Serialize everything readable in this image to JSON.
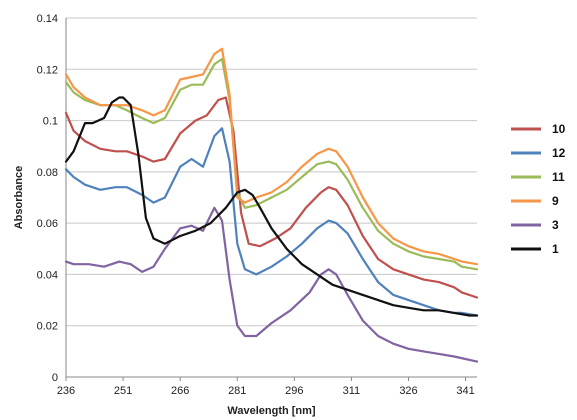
{
  "chart_data": {
    "type": "line",
    "xlabel": "Wavelength [nm]",
    "ylabel": "Absorbance",
    "xlim": [
      236,
      344
    ],
    "ylim": [
      0,
      0.14
    ],
    "x_ticks": [
      "236",
      "251",
      "266",
      "281",
      "296",
      "311",
      "326",
      "341"
    ],
    "y_ticks": [
      "0",
      "0.02",
      "0.04",
      "0.06",
      "0.08",
      "0.1",
      "0.12",
      "0.14"
    ],
    "grid": true,
    "legend_position": "right",
    "series": [
      {
        "name": "10",
        "color": "#c0504d",
        "x": [
          236,
          238,
          241,
          245,
          249,
          252,
          256,
          259,
          262,
          266,
          270,
          273,
          276,
          278,
          280,
          282,
          284,
          287,
          291,
          295,
          299,
          303,
          305,
          307,
          310,
          314,
          318,
          322,
          326,
          330,
          334,
          338,
          340,
          344
        ],
        "y": [
          0.103,
          0.096,
          0.092,
          0.089,
          0.088,
          0.088,
          0.086,
          0.084,
          0.085,
          0.095,
          0.1,
          0.102,
          0.108,
          0.109,
          0.096,
          0.064,
          0.052,
          0.051,
          0.054,
          0.058,
          0.066,
          0.072,
          0.074,
          0.073,
          0.067,
          0.055,
          0.046,
          0.042,
          0.04,
          0.038,
          0.037,
          0.035,
          0.033,
          0.031
        ]
      },
      {
        "name": "12",
        "color": "#4f81bd",
        "x": [
          236,
          238,
          241,
          245,
          249,
          252,
          256,
          259,
          262,
          266,
          269,
          272,
          275,
          277,
          279,
          281,
          283,
          286,
          290,
          294,
          298,
          302,
          305,
          307,
          310,
          314,
          318,
          322,
          326,
          330,
          334,
          338,
          340,
          344
        ],
        "y": [
          0.081,
          0.078,
          0.075,
          0.073,
          0.074,
          0.074,
          0.071,
          0.068,
          0.07,
          0.082,
          0.085,
          0.082,
          0.094,
          0.097,
          0.084,
          0.052,
          0.042,
          0.04,
          0.043,
          0.047,
          0.052,
          0.058,
          0.061,
          0.06,
          0.056,
          0.046,
          0.037,
          0.032,
          0.03,
          0.028,
          0.026,
          0.025,
          0.025,
          0.024
        ]
      },
      {
        "name": "11",
        "color": "#9bbb59",
        "x": [
          236,
          238,
          241,
          245,
          249,
          252,
          256,
          259,
          262,
          266,
          269,
          272,
          275,
          277,
          279,
          281,
          283,
          286,
          290,
          294,
          298,
          302,
          305,
          307,
          310,
          314,
          318,
          322,
          326,
          330,
          334,
          338,
          340,
          344
        ],
        "y": [
          0.115,
          0.111,
          0.108,
          0.106,
          0.106,
          0.104,
          0.101,
          0.099,
          0.101,
          0.112,
          0.114,
          0.114,
          0.122,
          0.124,
          0.108,
          0.072,
          0.066,
          0.067,
          0.07,
          0.073,
          0.078,
          0.083,
          0.084,
          0.083,
          0.077,
          0.066,
          0.057,
          0.052,
          0.049,
          0.047,
          0.046,
          0.045,
          0.043,
          0.042
        ]
      },
      {
        "name": "9",
        "color": "#f79646",
        "x": [
          236,
          238,
          241,
          245,
          249,
          252,
          256,
          259,
          262,
          266,
          269,
          272,
          275,
          277,
          279,
          281,
          283,
          286,
          290,
          294,
          298,
          302,
          305,
          307,
          310,
          314,
          318,
          322,
          326,
          330,
          334,
          338,
          340,
          344
        ],
        "y": [
          0.118,
          0.113,
          0.109,
          0.106,
          0.106,
          0.106,
          0.104,
          0.102,
          0.104,
          0.116,
          0.117,
          0.118,
          0.126,
          0.128,
          0.11,
          0.07,
          0.068,
          0.07,
          0.072,
          0.076,
          0.082,
          0.087,
          0.089,
          0.088,
          0.082,
          0.07,
          0.06,
          0.054,
          0.051,
          0.049,
          0.048,
          0.046,
          0.045,
          0.044
        ]
      },
      {
        "name": "3",
        "color": "#8064a2",
        "x": [
          236,
          238,
          242,
          246,
          250,
          253,
          256,
          259,
          262,
          266,
          269,
          272,
          275,
          277,
          279,
          281,
          283,
          286,
          290,
          295,
          300,
          303,
          305,
          307,
          310,
          314,
          318,
          322,
          326,
          330,
          334,
          338,
          344
        ],
        "y": [
          0.045,
          0.044,
          0.044,
          0.043,
          0.045,
          0.044,
          0.041,
          0.043,
          0.05,
          0.058,
          0.059,
          0.057,
          0.066,
          0.061,
          0.038,
          0.02,
          0.016,
          0.016,
          0.021,
          0.026,
          0.033,
          0.04,
          0.042,
          0.04,
          0.032,
          0.022,
          0.016,
          0.013,
          0.011,
          0.01,
          0.009,
          0.008,
          0.006
        ]
      },
      {
        "name": "1",
        "color": "#111111",
        "x": [
          236,
          238,
          241,
          243,
          246,
          248,
          250,
          251,
          253,
          255,
          257,
          259,
          262,
          266,
          270,
          274,
          278,
          281,
          283,
          285,
          287,
          290,
          294,
          298,
          302,
          306,
          310,
          314,
          318,
          322,
          326,
          330,
          334,
          338,
          342,
          344
        ],
        "y": [
          0.084,
          0.088,
          0.099,
          0.099,
          0.101,
          0.107,
          0.109,
          0.109,
          0.106,
          0.087,
          0.062,
          0.054,
          0.052,
          0.055,
          0.057,
          0.06,
          0.066,
          0.072,
          0.073,
          0.071,
          0.066,
          0.058,
          0.05,
          0.044,
          0.04,
          0.036,
          0.034,
          0.032,
          0.03,
          0.028,
          0.027,
          0.026,
          0.026,
          0.025,
          0.024,
          0.024
        ]
      }
    ]
  }
}
